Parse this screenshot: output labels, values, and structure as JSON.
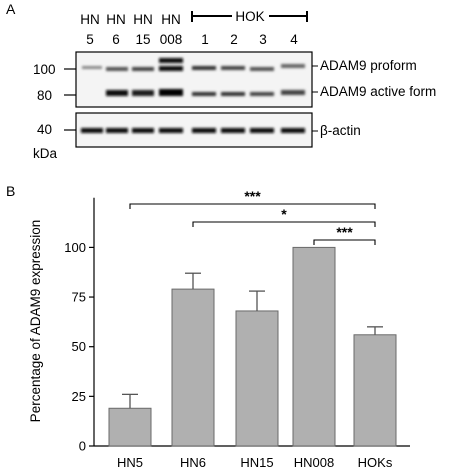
{
  "figure": {
    "panel_a_label": "A",
    "panel_b_label": "B"
  },
  "blot": {
    "lanes_top": [
      "HN",
      "HN",
      "HN",
      "HN"
    ],
    "lanes_bottom": [
      "5",
      "6",
      "15",
      "008",
      "1",
      "2",
      "3",
      "4"
    ],
    "group_label": "HOK",
    "markers_top": [
      "100",
      "80"
    ],
    "marker_bottom": "40",
    "unit": "kDa",
    "band_labels": [
      "ADAM9 proform",
      "ADAM9 active form"
    ],
    "actin_label": "β-actin"
  },
  "chart_data": {
    "type": "bar",
    "categories": [
      "HN5",
      "HN6",
      "HN15",
      "HN008",
      "HOKs"
    ],
    "values": [
      19,
      79,
      68,
      100,
      56
    ],
    "errors": [
      7,
      8,
      10,
      0,
      4
    ],
    "title": "",
    "xlabel": "",
    "ylabel": "Percentage of ADAM9 expression",
    "ylim": [
      0,
      125
    ],
    "yticks": [
      0,
      25,
      50,
      75,
      100
    ],
    "grid": false,
    "bar_color": "#b0b0b0",
    "significance": [
      {
        "from": "HN5",
        "to": "HOKs",
        "label": "***"
      },
      {
        "from": "HN6",
        "to": "HOKs",
        "label": "*"
      },
      {
        "from": "HN008",
        "to": "HOKs",
        "label": "***"
      }
    ]
  }
}
